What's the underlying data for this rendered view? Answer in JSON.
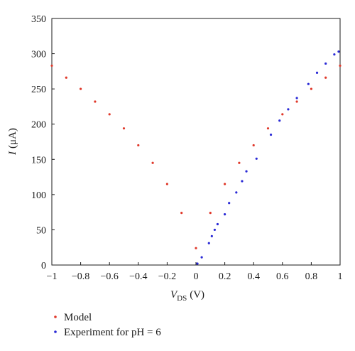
{
  "chart_data": {
    "type": "scatter",
    "title": "",
    "xlabel_main": "V",
    "xlabel_sub": "DS",
    "xlabel_unit": "(V)",
    "ylabel_main": "I",
    "ylabel_unit": "(μA)",
    "xlim": [
      -1,
      1
    ],
    "ylim": [
      0,
      350
    ],
    "xticks": [
      -1,
      -0.8,
      -0.6,
      -0.4,
      -0.2,
      0,
      0.2,
      0.4,
      0.6,
      0.8,
      1
    ],
    "yticks": [
      0,
      50,
      100,
      150,
      200,
      250,
      300,
      350
    ],
    "xtick_labels": [
      "−1",
      "−0.8",
      "−0.6",
      "−0.4",
      "−0.2",
      "0",
      "0.2",
      "0.4",
      "0.6",
      "0.8",
      "1"
    ],
    "ytick_labels": [
      "0",
      "50",
      "100",
      "150",
      "200",
      "250",
      "300",
      "350"
    ],
    "grid": false,
    "legend_position": "bottom-left, below plot",
    "series": [
      {
        "name": "Model",
        "color": "#e0392b",
        "points": [
          [
            -1.0,
            283
          ],
          [
            -0.9,
            266
          ],
          [
            -0.8,
            250
          ],
          [
            -0.7,
            232
          ],
          [
            -0.6,
            214
          ],
          [
            -0.5,
            194
          ],
          [
            -0.4,
            170
          ],
          [
            -0.3,
            145
          ],
          [
            -0.2,
            115
          ],
          [
            -0.1,
            74
          ],
          [
            0.0,
            24
          ],
          [
            0.1,
            74
          ],
          [
            0.2,
            115
          ],
          [
            0.3,
            145
          ],
          [
            0.4,
            170
          ],
          [
            0.5,
            194
          ],
          [
            0.6,
            214
          ],
          [
            0.7,
            232
          ],
          [
            0.8,
            250
          ],
          [
            0.9,
            266
          ],
          [
            1.0,
            283
          ]
        ]
      },
      {
        "name": "Experiment for pH = 6",
        "color": "#2a2ad6",
        "points": [
          [
            0.01,
            2
          ],
          [
            0.04,
            11
          ],
          [
            0.09,
            31
          ],
          [
            0.11,
            41
          ],
          [
            0.13,
            50
          ],
          [
            0.15,
            58
          ],
          [
            0.2,
            72
          ],
          [
            0.23,
            88
          ],
          [
            0.28,
            103
          ],
          [
            0.32,
            119
          ],
          [
            0.35,
            133
          ],
          [
            0.42,
            151
          ],
          [
            0.52,
            185
          ],
          [
            0.58,
            205
          ],
          [
            0.64,
            221
          ],
          [
            0.7,
            237
          ],
          [
            0.78,
            257
          ],
          [
            0.84,
            273
          ],
          [
            0.9,
            286
          ],
          [
            0.96,
            299
          ],
          [
            0.99,
            303
          ]
        ]
      }
    ]
  }
}
